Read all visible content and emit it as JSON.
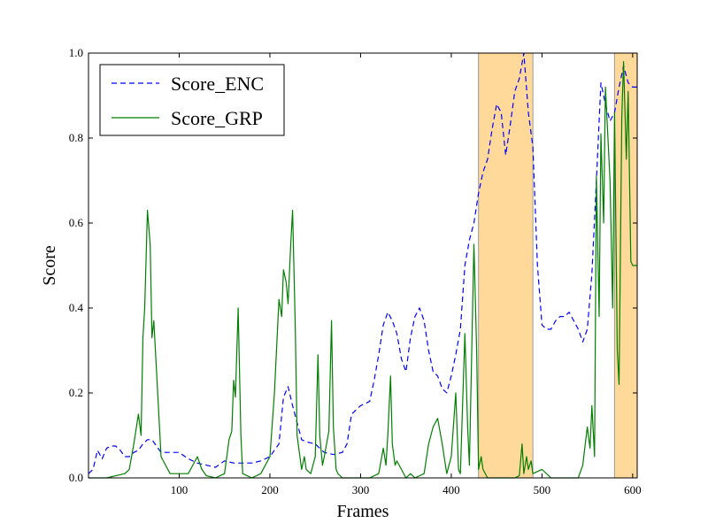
{
  "chart_data": {
    "type": "line",
    "title": "",
    "xlabel": "Frames",
    "ylabel": "Score",
    "xlim": [
      0,
      605
    ],
    "ylim": [
      0,
      1
    ],
    "xticks": [
      100,
      200,
      300,
      400,
      500,
      600
    ],
    "yticks": [
      0.0,
      0.2,
      0.4,
      0.6,
      0.8,
      1.0
    ],
    "xtick_labels": [
      "100",
      "200",
      "300",
      "400",
      "500",
      "600"
    ],
    "ytick_labels": [
      "0.0",
      "0.2",
      "0.4",
      "0.6",
      "0.8",
      "1.0"
    ],
    "grid": false,
    "legend": {
      "position": "top-left"
    },
    "highlight_regions": [
      {
        "x0": 430,
        "x1": 490,
        "color": "#ffd999"
      },
      {
        "x0": 580,
        "x1": 605,
        "color": "#ffd999"
      }
    ],
    "series": [
      {
        "name": "Score_ENC",
        "color": "#0000ff",
        "style": "dashed",
        "x": [
          0,
          5,
          10,
          15,
          20,
          25,
          30,
          35,
          40,
          45,
          50,
          55,
          60,
          65,
          70,
          80,
          90,
          100,
          110,
          120,
          130,
          140,
          150,
          160,
          170,
          180,
          190,
          200,
          210,
          215,
          220,
          225,
          230,
          235,
          240,
          250,
          260,
          270,
          280,
          285,
          290,
          300,
          310,
          315,
          320,
          325,
          330,
          335,
          340,
          345,
          350,
          355,
          360,
          365,
          370,
          375,
          380,
          385,
          390,
          395,
          400,
          405,
          410,
          415,
          420,
          425,
          430,
          435,
          440,
          445,
          450,
          455,
          460,
          465,
          470,
          475,
          480,
          485,
          490,
          495,
          500,
          505,
          510,
          515,
          520,
          525,
          530,
          535,
          540,
          545,
          550,
          555,
          560,
          565,
          570,
          575,
          580,
          585,
          590,
          595,
          600,
          605
        ],
        "y": [
          0.01,
          0.02,
          0.065,
          0.045,
          0.07,
          0.075,
          0.075,
          0.065,
          0.05,
          0.05,
          0.06,
          0.065,
          0.08,
          0.09,
          0.09,
          0.06,
          0.06,
          0.06,
          0.045,
          0.035,
          0.03,
          0.025,
          0.04,
          0.035,
          0.035,
          0.035,
          0.04,
          0.05,
          0.08,
          0.19,
          0.215,
          0.17,
          0.13,
          0.09,
          0.085,
          0.08,
          0.06,
          0.055,
          0.06,
          0.08,
          0.15,
          0.17,
          0.18,
          0.23,
          0.29,
          0.36,
          0.39,
          0.37,
          0.34,
          0.28,
          0.25,
          0.33,
          0.38,
          0.4,
          0.37,
          0.3,
          0.25,
          0.24,
          0.21,
          0.2,
          0.24,
          0.29,
          0.35,
          0.5,
          0.56,
          0.6,
          0.67,
          0.72,
          0.75,
          0.82,
          0.88,
          0.86,
          0.76,
          0.83,
          0.91,
          0.94,
          1.0,
          0.86,
          0.78,
          0.5,
          0.36,
          0.35,
          0.35,
          0.37,
          0.38,
          0.38,
          0.39,
          0.37,
          0.35,
          0.32,
          0.35,
          0.48,
          0.7,
          0.93,
          0.88,
          0.84,
          0.86,
          0.92,
          0.97,
          0.93,
          0.92,
          0.92
        ]
      },
      {
        "name": "Score_GRP",
        "color": "#007f00",
        "style": "solid",
        "x": [
          0,
          10,
          20,
          30,
          40,
          45,
          50,
          55,
          58,
          60,
          62,
          65,
          68,
          70,
          72,
          75,
          80,
          90,
          100,
          110,
          115,
          120,
          125,
          130,
          140,
          150,
          155,
          158,
          160,
          162,
          165,
          168,
          170,
          180,
          190,
          200,
          205,
          210,
          213,
          215,
          218,
          220,
          223,
          225,
          228,
          230,
          235,
          238,
          240,
          245,
          250,
          253,
          255,
          258,
          260,
          265,
          268,
          270,
          273,
          275,
          280,
          290,
          300,
          310,
          320,
          325,
          328,
          330,
          333,
          335,
          338,
          340,
          345,
          350,
          355,
          360,
          370,
          375,
          380,
          385,
          390,
          395,
          400,
          405,
          408,
          410,
          415,
          418,
          420,
          425,
          428,
          430,
          433,
          435,
          440,
          445,
          450,
          460,
          470,
          475,
          478,
          480,
          483,
          485,
          488,
          490,
          500,
          510,
          520,
          530,
          540,
          545,
          550,
          553,
          555,
          558,
          560,
          563,
          565,
          568,
          570,
          575,
          578,
          580,
          583,
          585,
          588,
          590,
          593,
          595,
          598,
          600,
          605
        ],
        "y": [
          0.0,
          0.0,
          0.0,
          0.005,
          0.01,
          0.02,
          0.08,
          0.15,
          0.1,
          0.33,
          0.4,
          0.63,
          0.55,
          0.33,
          0.37,
          0.25,
          0.05,
          0.01,
          0.01,
          0.01,
          0.03,
          0.05,
          0.02,
          0.005,
          0.0,
          0.01,
          0.09,
          0.11,
          0.23,
          0.19,
          0.4,
          0.1,
          0.01,
          0.0,
          0.01,
          0.05,
          0.2,
          0.42,
          0.38,
          0.49,
          0.46,
          0.41,
          0.55,
          0.63,
          0.35,
          0.1,
          0.02,
          0.05,
          0.02,
          0.01,
          0.05,
          0.29,
          0.1,
          0.03,
          0.05,
          0.11,
          0.37,
          0.12,
          0.02,
          0.01,
          0.0,
          0.0,
          0.0,
          0.0,
          0.01,
          0.07,
          0.03,
          0.1,
          0.24,
          0.08,
          0.03,
          0.04,
          0.02,
          0.0,
          0.01,
          0.0,
          0.01,
          0.08,
          0.12,
          0.14,
          0.08,
          0.01,
          0.05,
          0.2,
          0.02,
          0.01,
          0.34,
          0.12,
          0.03,
          0.55,
          0.3,
          0.02,
          0.05,
          0.02,
          0.0,
          0.0,
          0.0,
          0.0,
          0.0,
          0.005,
          0.08,
          0.01,
          0.05,
          0.02,
          0.04,
          0.01,
          0.02,
          0.0,
          0.0,
          0.0,
          0.0,
          0.03,
          0.12,
          0.07,
          0.17,
          0.05,
          0.71,
          0.38,
          0.81,
          0.6,
          0.92,
          0.7,
          0.4,
          0.86,
          0.3,
          0.22,
          0.85,
          0.98,
          0.75,
          0.91,
          0.51,
          0.5,
          0.5
        ]
      }
    ]
  }
}
